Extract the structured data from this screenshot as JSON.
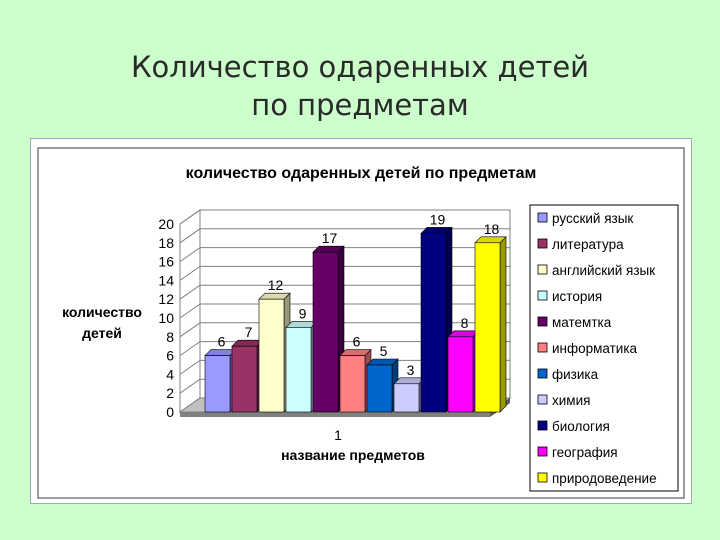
{
  "slide": {
    "title_line1": "Количество одаренных детей",
    "title_line2": "по предметам"
  },
  "chart_data": {
    "type": "bar",
    "title": "количество одаренных детей по предметам",
    "xlabel": "название предметов",
    "ylabel_line1": "количество",
    "ylabel_line2": "детей",
    "categories": [
      "1"
    ],
    "ylim": [
      0,
      20
    ],
    "yticks": [
      "0",
      "2",
      "4",
      "6",
      "8",
      "10",
      "12",
      "14",
      "16",
      "18",
      "20"
    ],
    "grid": true,
    "legend_position": "right",
    "series": [
      {
        "name": "русский язык",
        "values": [
          6
        ],
        "color": "#9999ff"
      },
      {
        "name": "литература",
        "values": [
          7
        ],
        "color": "#993366"
      },
      {
        "name": "английский язык",
        "values": [
          12
        ],
        "color": "#ffffcc"
      },
      {
        "name": "история",
        "values": [
          9
        ],
        "color": "#ccffff"
      },
      {
        "name": "матемтка",
        "values": [
          17
        ],
        "color": "#660066"
      },
      {
        "name": "информатика",
        "values": [
          6
        ],
        "color": "#ff8080"
      },
      {
        "name": "физика",
        "values": [
          5
        ],
        "color": "#0066cc"
      },
      {
        "name": "химия",
        "values": [
          3
        ],
        "color": "#ccccff"
      },
      {
        "name": "биология",
        "values": [
          19
        ],
        "color": "#000080"
      },
      {
        "name": "география",
        "values": [
          8
        ],
        "color": "#ff00ff"
      },
      {
        "name": "природоведение",
        "values": [
          18
        ],
        "color": "#ffff00"
      }
    ],
    "data_labels": [
      "6",
      "7",
      "12",
      "9",
      "17",
      "6",
      "5",
      "3",
      "19",
      "8",
      "18"
    ]
  }
}
